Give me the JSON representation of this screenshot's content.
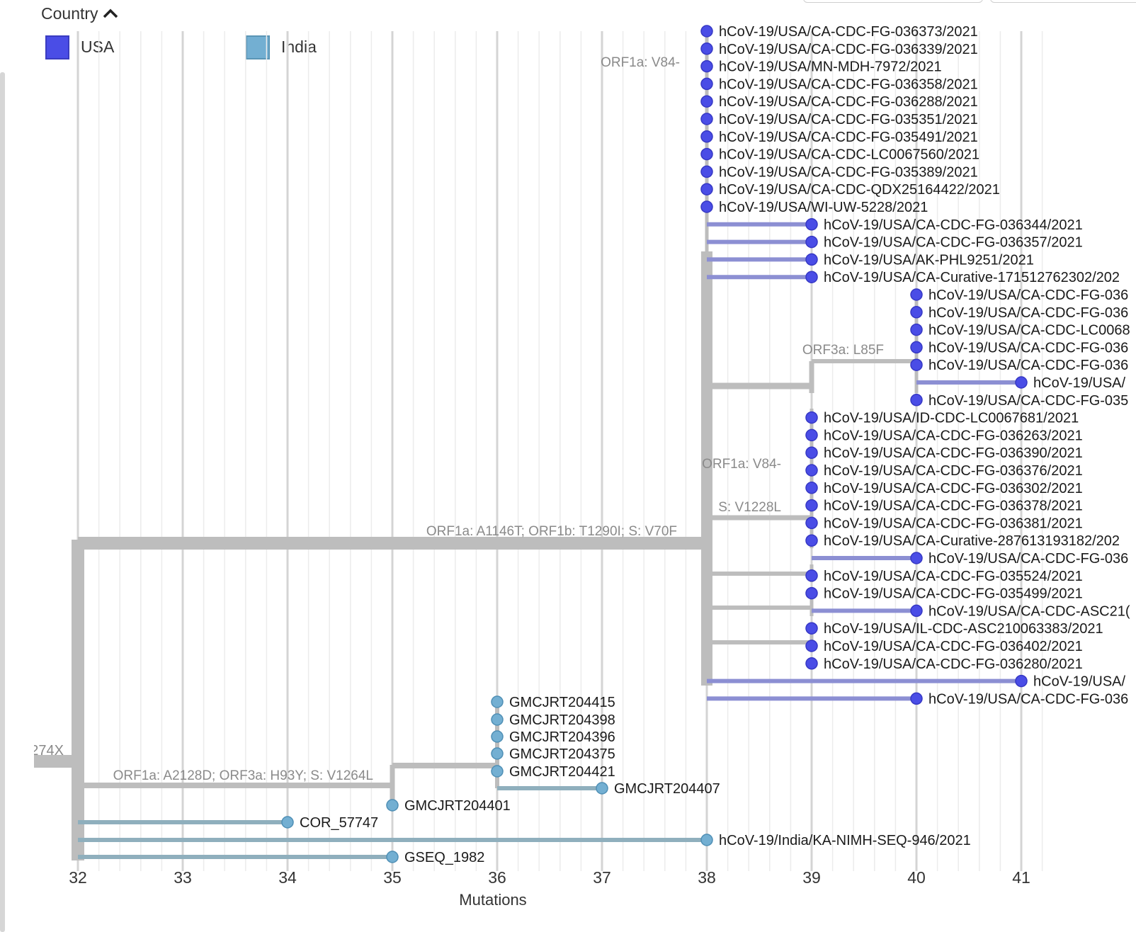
{
  "legend": {
    "title": "Country",
    "items": [
      {
        "label": "USA",
        "color": "#4a4de6"
      },
      {
        "label": "India",
        "color": "#73afd2"
      }
    ]
  },
  "chart_data": {
    "type": "tree",
    "xlabel": "Mutations",
    "xticks": [
      32,
      33,
      34,
      35,
      36,
      37,
      38,
      39,
      40,
      41
    ],
    "colors": {
      "USA": "#4a4de6",
      "India": "#73afd2",
      "branch": "#bdbdbd",
      "usa_branch": "#8c8fd3",
      "india_branch": "#8fafbd"
    },
    "root": {
      "partial_label": "274X",
      "x": 32
    },
    "branches": [
      {
        "x0": 31.5,
        "x1": 32,
        "y_row": "root",
        "label": "274X"
      },
      {
        "x0": 32,
        "x1": 38,
        "label": "ORF1a: A1146T; ORF1b: T1290I; S: V70F"
      },
      {
        "x0": 32,
        "x1": 35,
        "label": "ORF1a: A2128D; ORF3a: H93Y; S: V1264L"
      },
      {
        "x0": 38,
        "x1": 38,
        "label": "ORF1a: V84-"
      },
      {
        "x0": 39,
        "x1": 40,
        "label": "ORF3a: L85F"
      },
      {
        "x0": 39,
        "x1": 39,
        "label": "ORF1a: V84-"
      },
      {
        "x0": 38,
        "x1": 39,
        "label": "S: V1228L"
      }
    ],
    "tips": [
      {
        "name": "hCoV-19/USA/CA-CDC-FG-036373/2021",
        "country": "USA",
        "x": 38
      },
      {
        "name": "hCoV-19/USA/CA-CDC-FG-036339/2021",
        "country": "USA",
        "x": 38
      },
      {
        "name": "hCoV-19/USA/MN-MDH-7972/2021",
        "country": "USA",
        "x": 38
      },
      {
        "name": "hCoV-19/USA/CA-CDC-FG-036358/2021",
        "country": "USA",
        "x": 38
      },
      {
        "name": "hCoV-19/USA/CA-CDC-FG-036288/2021",
        "country": "USA",
        "x": 38
      },
      {
        "name": "hCoV-19/USA/CA-CDC-FG-035351/2021",
        "country": "USA",
        "x": 38
      },
      {
        "name": "hCoV-19/USA/CA-CDC-FG-035491/2021",
        "country": "USA",
        "x": 38
      },
      {
        "name": "hCoV-19/USA/CA-CDC-LC0067560/2021",
        "country": "USA",
        "x": 38
      },
      {
        "name": "hCoV-19/USA/CA-CDC-FG-035389/2021",
        "country": "USA",
        "x": 38
      },
      {
        "name": "hCoV-19/USA/CA-CDC-QDX25164422/2021",
        "country": "USA",
        "x": 38
      },
      {
        "name": "hCoV-19/USA/WI-UW-5228/2021",
        "country": "USA",
        "x": 38
      },
      {
        "name": "hCoV-19/USA/CA-CDC-FG-036344/2021",
        "country": "USA",
        "x": 39
      },
      {
        "name": "hCoV-19/USA/CA-CDC-FG-036357/2021",
        "country": "USA",
        "x": 39
      },
      {
        "name": "hCoV-19/USA/AK-PHL9251/2021",
        "country": "USA",
        "x": 39
      },
      {
        "name": "hCoV-19/USA/CA-Curative-171512762302/202",
        "country": "USA",
        "x": 39
      },
      {
        "name": "hCoV-19/USA/CA-CDC-FG-036",
        "country": "USA",
        "x": 40
      },
      {
        "name": "hCoV-19/USA/CA-CDC-FG-036",
        "country": "USA",
        "x": 40
      },
      {
        "name": "hCoV-19/USA/CA-CDC-LC0068",
        "country": "USA",
        "x": 40
      },
      {
        "name": "hCoV-19/USA/CA-CDC-FG-036",
        "country": "USA",
        "x": 40
      },
      {
        "name": "hCoV-19/USA/CA-CDC-FG-036",
        "country": "USA",
        "x": 40
      },
      {
        "name": "hCoV-19/USA/",
        "country": "USA",
        "x": 41
      },
      {
        "name": "hCoV-19/USA/CA-CDC-FG-035",
        "country": "USA",
        "x": 40
      },
      {
        "name": "hCoV-19/USA/ID-CDC-LC0067681/2021",
        "country": "USA",
        "x": 39
      },
      {
        "name": "hCoV-19/USA/CA-CDC-FG-036263/2021",
        "country": "USA",
        "x": 39
      },
      {
        "name": "hCoV-19/USA/CA-CDC-FG-036390/2021",
        "country": "USA",
        "x": 39
      },
      {
        "name": "hCoV-19/USA/CA-CDC-FG-036376/2021",
        "country": "USA",
        "x": 39
      },
      {
        "name": "hCoV-19/USA/CA-CDC-FG-036302/2021",
        "country": "USA",
        "x": 39
      },
      {
        "name": "hCoV-19/USA/CA-CDC-FG-036378/2021",
        "country": "USA",
        "x": 39
      },
      {
        "name": "hCoV-19/USA/CA-CDC-FG-036381/2021",
        "country": "USA",
        "x": 39
      },
      {
        "name": "hCoV-19/USA/CA-Curative-287613193182/202",
        "country": "USA",
        "x": 39
      },
      {
        "name": "hCoV-19/USA/CA-CDC-FG-036",
        "country": "USA",
        "x": 40
      },
      {
        "name": "hCoV-19/USA/CA-CDC-FG-035524/2021",
        "country": "USA",
        "x": 39
      },
      {
        "name": "hCoV-19/USA/CA-CDC-FG-035499/2021",
        "country": "USA",
        "x": 39
      },
      {
        "name": "hCoV-19/USA/CA-CDC-ASC21(",
        "country": "USA",
        "x": 40
      },
      {
        "name": "hCoV-19/USA/IL-CDC-ASC210063383/2021",
        "country": "USA",
        "x": 39
      },
      {
        "name": "hCoV-19/USA/CA-CDC-FG-036402/2021",
        "country": "USA",
        "x": 39
      },
      {
        "name": "hCoV-19/USA/CA-CDC-FG-036280/2021",
        "country": "USA",
        "x": 39
      },
      {
        "name": "hCoV-19/USA/",
        "country": "USA",
        "x": 41
      },
      {
        "name": "hCoV-19/USA/CA-CDC-FG-036",
        "country": "USA",
        "x": 40
      },
      {
        "name": "GMCJRT204415",
        "country": "India",
        "x": 36
      },
      {
        "name": "GMCJRT204398",
        "country": "India",
        "x": 36
      },
      {
        "name": "GMCJRT204396",
        "country": "India",
        "x": 36
      },
      {
        "name": "GMCJRT204375",
        "country": "India",
        "x": 36
      },
      {
        "name": "GMCJRT204421",
        "country": "India",
        "x": 36
      },
      {
        "name": "GMCJRT204407",
        "country": "India",
        "x": 37
      },
      {
        "name": "GMCJRT204401",
        "country": "India",
        "x": 35
      },
      {
        "name": "COR_57747",
        "country": "India",
        "x": 34
      },
      {
        "name": "hCoV-19/India/KA-NIMH-SEQ-946/2021",
        "country": "India",
        "x": 38
      },
      {
        "name": "GSEQ_1982",
        "country": "India",
        "x": 35
      }
    ]
  }
}
